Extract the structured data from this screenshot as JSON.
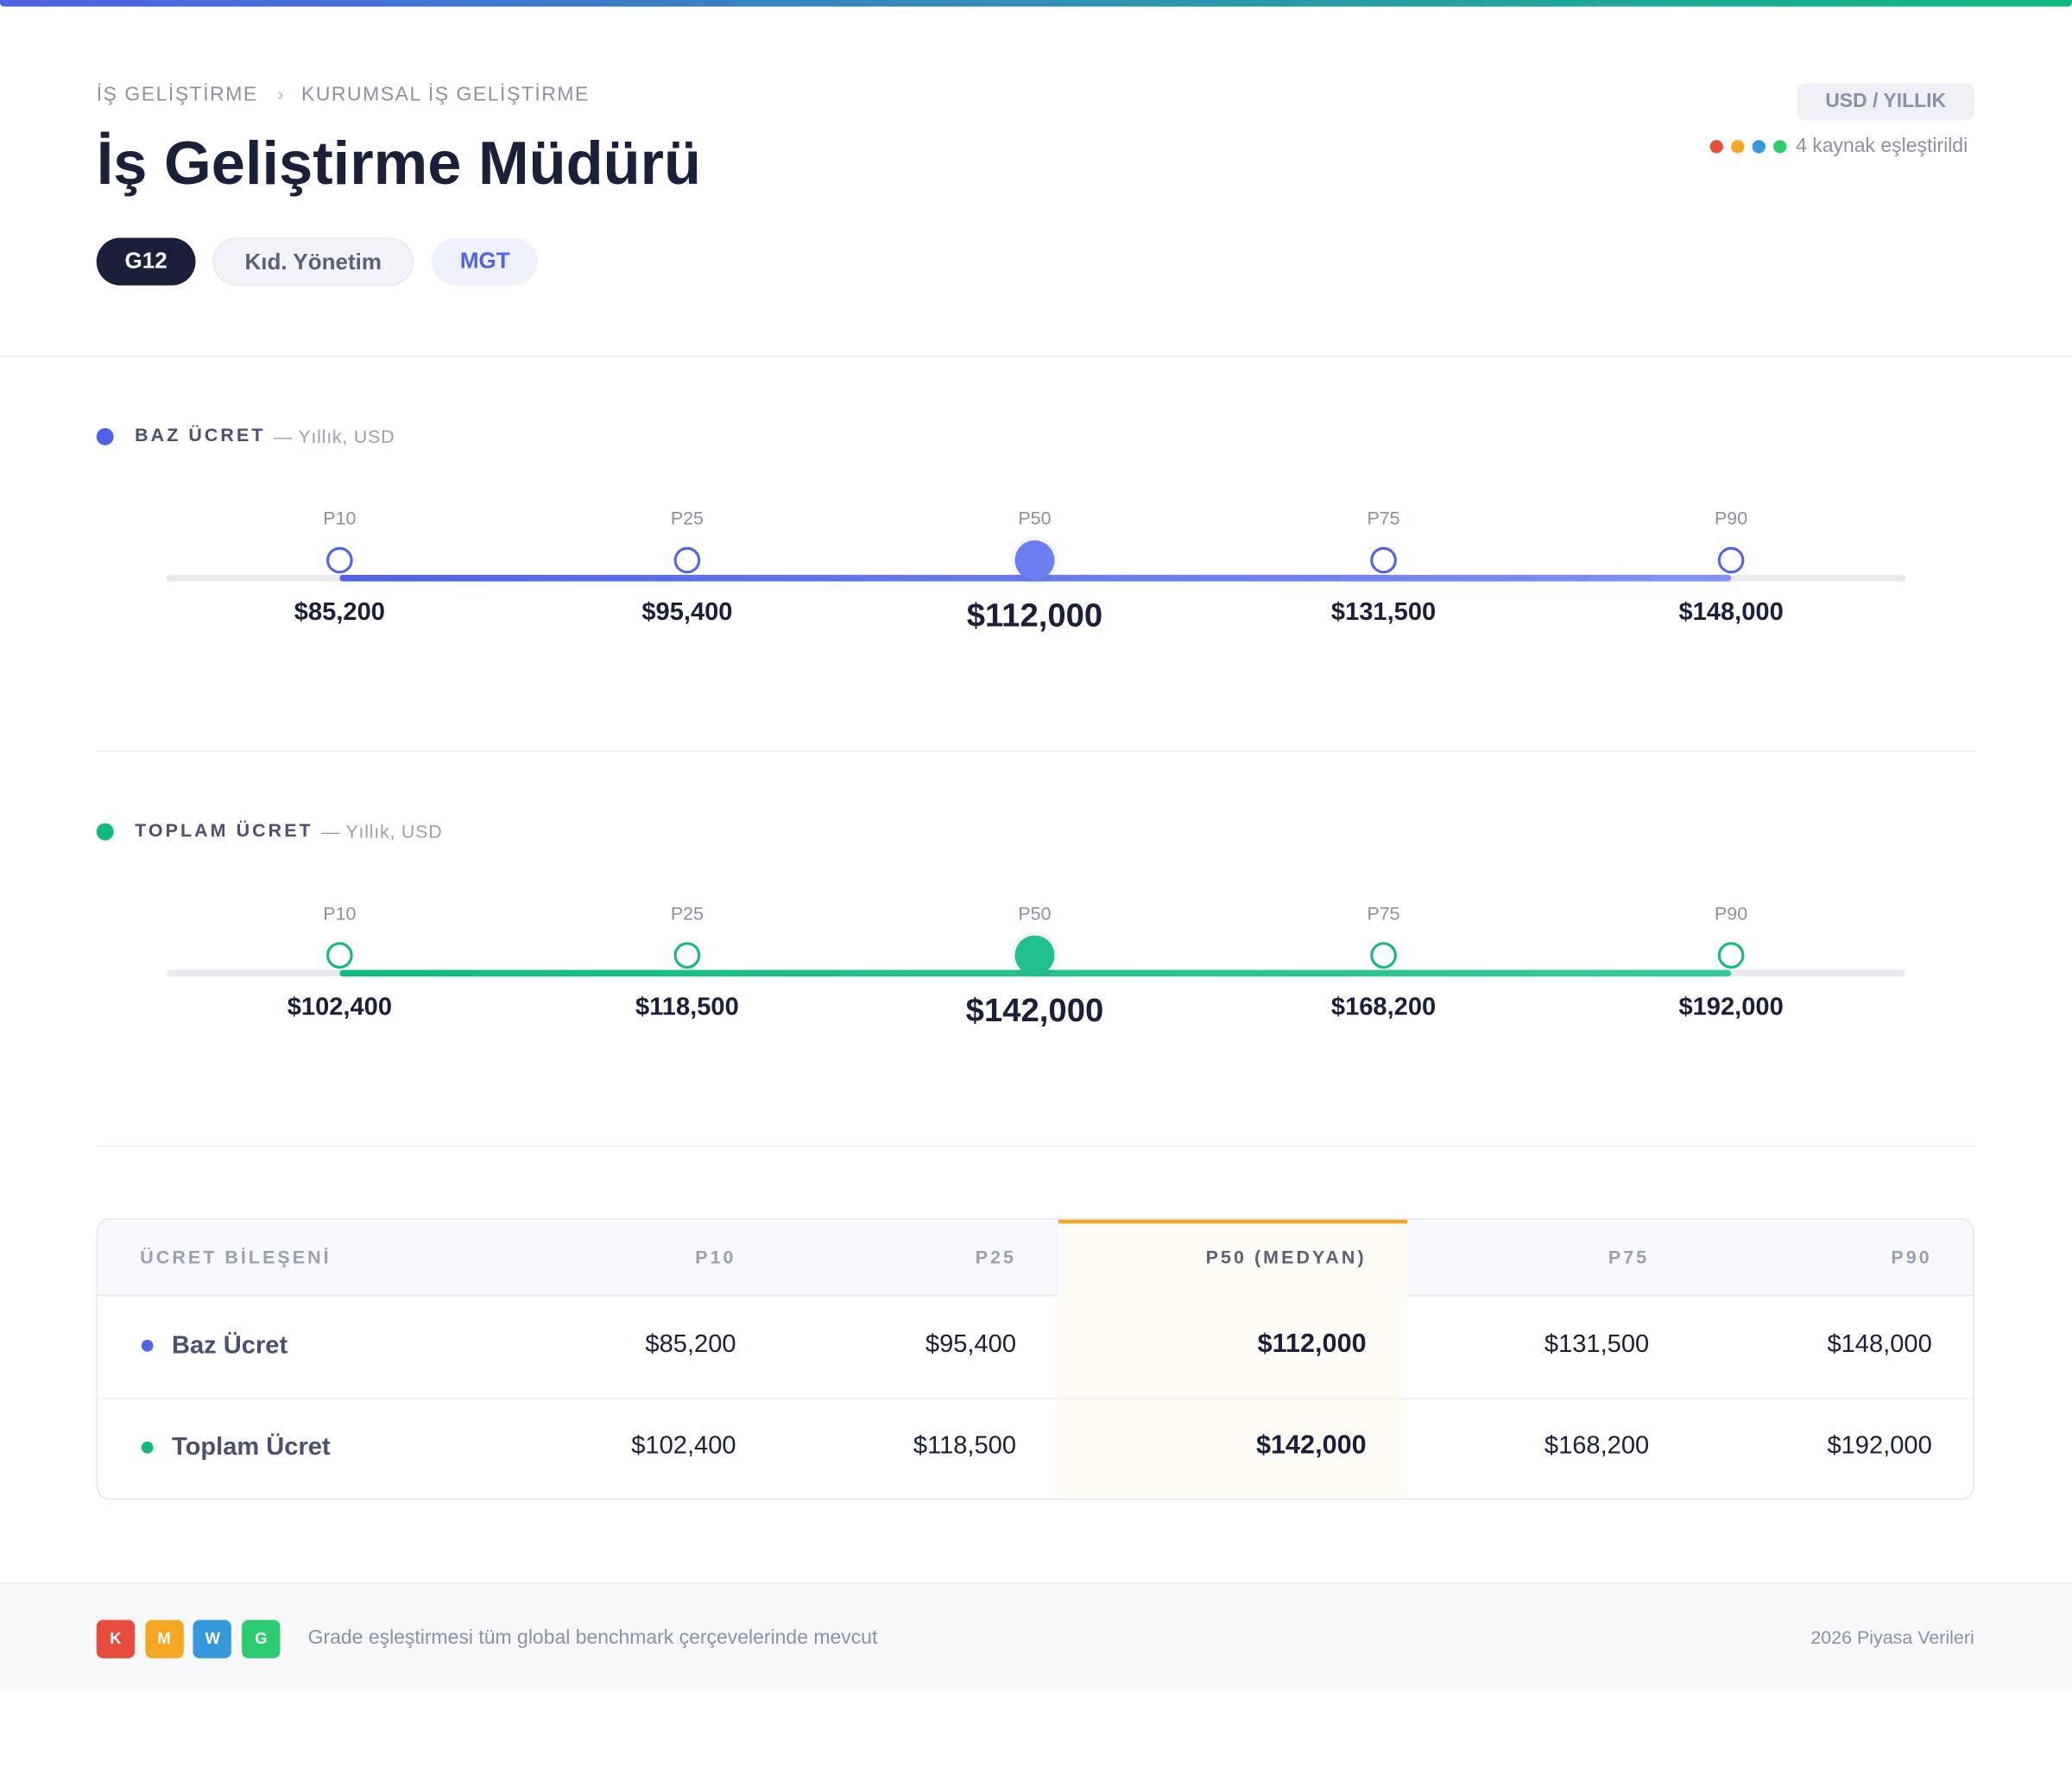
{
  "breadcrumb": [
    "İŞ GELİŞTİRME",
    "KURUMSAL İŞ GELİŞTİRME"
  ],
  "title": "İş Geliştirme Müdürü",
  "tags": [
    "G12",
    "Kıd. Yönetim",
    "MGT"
  ],
  "badge": "USD / YILLIK",
  "sources": "4 kaynak eşleştirildi",
  "sections": [
    {
      "title": "BAZ ÜCRET",
      "subtitle": "— Yıllık, USD",
      "points": [
        {
          "label": "P10",
          "value": "$85,200"
        },
        {
          "label": "P25",
          "value": "$95,400"
        },
        {
          "label": "P50",
          "value": "$112,000"
        },
        {
          "label": "P75",
          "value": "$131,500"
        },
        {
          "label": "P90",
          "value": "$148,000"
        }
      ]
    },
    {
      "title": "TOPLAM ÜCRET",
      "subtitle": "— Yıllık, USD",
      "points": [
        {
          "label": "P10",
          "value": "$102,400"
        },
        {
          "label": "P25",
          "value": "$118,500"
        },
        {
          "label": "P50",
          "value": "$142,000"
        },
        {
          "label": "P75",
          "value": "$168,200"
        },
        {
          "label": "P90",
          "value": "$192,000"
        }
      ]
    }
  ],
  "table": {
    "header": [
      "ÜCRET BİLEŞENİ",
      "P10",
      "P25",
      "P50 (MEDYAN)",
      "P75",
      "P90"
    ],
    "rows": [
      [
        "Baz Ücret",
        "$85,200",
        "$95,400",
        "$112,000",
        "$131,500",
        "$148,000"
      ],
      [
        "Toplam Ücret",
        "$102,400",
        "$118,500",
        "$142,000",
        "$168,200",
        "$192,000"
      ]
    ]
  },
  "footer": {
    "badges": [
      "K",
      "M",
      "W",
      "G"
    ],
    "note": "Grade eşleştirmesi tüm global benchmark çerçevelerinde mevcut",
    "year": "2026 Piyasa Verileri"
  }
}
